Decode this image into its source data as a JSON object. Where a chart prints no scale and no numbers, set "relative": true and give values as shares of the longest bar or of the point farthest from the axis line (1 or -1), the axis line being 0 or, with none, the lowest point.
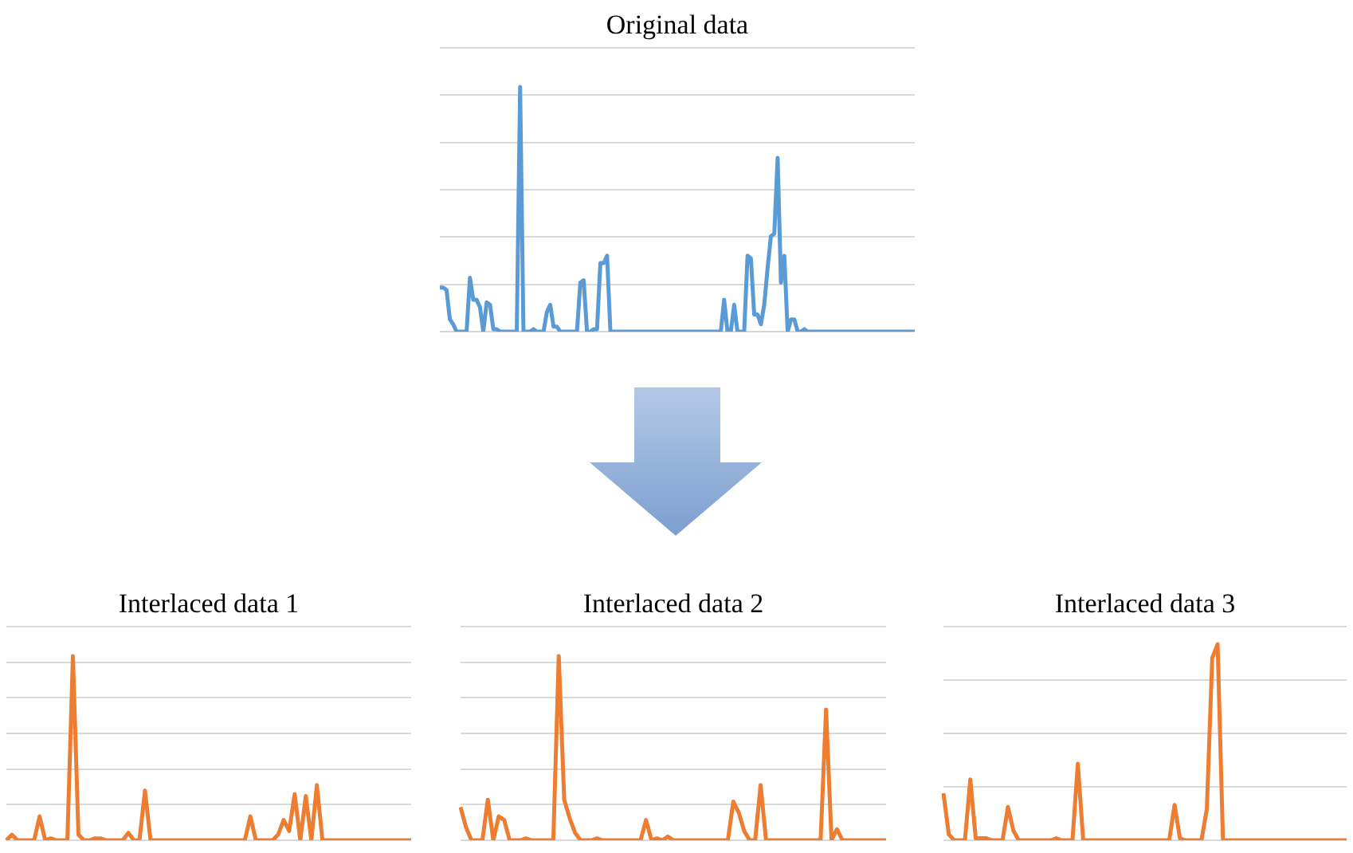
{
  "chart_data": [
    {
      "type": "line",
      "title": "Original data",
      "relative": true,
      "grid": "y",
      "marker": "none",
      "categories": [
        null,
        null,
        null,
        null,
        null,
        null,
        null,
        null,
        null,
        null,
        null,
        null,
        null,
        null,
        null,
        null,
        null,
        null,
        null,
        null,
        null,
        null,
        null,
        null,
        null,
        null,
        null,
        null,
        null,
        null,
        null,
        null,
        null,
        null,
        null,
        null,
        null,
        null,
        null,
        null,
        null,
        null,
        null,
        null,
        null,
        null,
        null,
        null,
        null,
        null,
        null,
        null,
        null,
        null,
        null,
        null,
        null,
        null,
        null,
        null,
        null,
        null,
        null,
        null,
        null,
        null,
        null,
        null,
        null,
        null,
        null,
        null,
        null,
        null,
        null,
        null,
        null,
        null,
        null,
        null,
        null,
        null,
        null,
        null,
        null,
        null,
        null,
        null,
        null,
        null,
        null,
        null,
        null,
        null,
        null,
        null,
        null,
        null,
        null,
        null,
        null,
        null,
        null,
        null,
        null,
        null,
        null,
        null,
        null,
        null,
        null,
        null,
        null,
        null,
        null,
        null,
        null,
        null,
        null,
        null,
        null,
        null,
        null,
        null,
        null,
        null,
        null,
        null,
        null,
        null,
        null,
        null,
        null,
        null,
        null,
        null,
        null,
        null,
        null,
        null,
        null,
        null,
        null
      ],
      "series": [
        {
          "color": "#5b9bd5",
          "values": [
            0.18,
            0.18,
            0.17,
            0.05,
            0.03,
            0,
            0,
            0,
            0,
            0.22,
            0.13,
            0.13,
            0.1,
            0,
            0.12,
            0.11,
            0.01,
            0.01,
            0,
            0,
            0,
            0,
            0,
            0,
            1,
            0,
            0,
            0,
            0.01,
            0,
            0,
            0,
            0.08,
            0.11,
            0.02,
            0.02,
            0,
            0,
            0,
            0,
            0,
            0,
            0.2,
            0.21,
            0,
            0,
            0.01,
            0.01,
            0.28,
            0.28,
            0.31,
            0,
            0,
            0,
            0,
            0,
            0,
            0,
            0,
            0,
            0,
            0,
            0,
            0,
            0,
            0,
            0,
            0,
            0,
            0,
            0,
            0,
            0,
            0,
            0,
            0,
            0,
            0,
            0,
            0,
            0,
            0,
            0,
            0,
            0,
            0.13,
            0,
            0,
            0.11,
            0,
            0,
            0,
            0.31,
            0.3,
            0.07,
            0.07,
            0.03,
            0.11,
            0.26,
            0.39,
            0.4,
            0.71,
            0.2,
            0.31,
            0,
            0.05,
            0.05,
            0,
            0,
            0.01,
            0,
            0,
            0,
            0,
            0,
            0,
            0,
            0,
            0,
            0,
            0,
            0,
            0,
            0,
            0,
            0,
            0,
            0,
            0,
            0,
            0,
            0,
            0,
            0,
            0,
            0,
            0,
            0,
            0,
            0,
            0,
            0,
            0
          ]
        }
      ]
    },
    {
      "type": "line",
      "title": "Interlaced data 1",
      "relative": true,
      "grid": "y",
      "marker": "none",
      "categories": [
        null,
        null,
        null,
        null,
        null,
        null,
        null,
        null,
        null,
        null,
        null,
        null,
        null,
        null,
        null,
        null,
        null,
        null,
        null,
        null,
        null,
        null,
        null,
        null,
        null,
        null,
        null,
        null,
        null,
        null,
        null,
        null,
        null,
        null,
        null,
        null,
        null,
        null,
        null,
        null,
        null,
        null,
        null,
        null,
        null,
        null,
        null,
        null,
        null,
        null,
        null,
        null,
        null,
        null,
        null,
        null,
        null,
        null,
        null,
        null,
        null,
        null,
        null,
        null,
        null,
        null,
        null,
        null,
        null,
        null,
        null,
        null,
        null,
        null
      ],
      "series": [
        {
          "color": "#ed7d31",
          "values": [
            0,
            0.03,
            0,
            0,
            0,
            0,
            0.13,
            0,
            0.01,
            0,
            0,
            0,
            1,
            0.03,
            0,
            0,
            0.01,
            0.01,
            0,
            0,
            0,
            0,
            0.04,
            0,
            0,
            0.27,
            0,
            0,
            0,
            0,
            0,
            0,
            0,
            0,
            0,
            0,
            0,
            0,
            0,
            0,
            0,
            0,
            0,
            0,
            0.13,
            0,
            0,
            0,
            0,
            0.03,
            0.11,
            0.05,
            0.25,
            0,
            0.24,
            0,
            0.3,
            0,
            0,
            0,
            0,
            0,
            0,
            0,
            0,
            0,
            0,
            0,
            0,
            0,
            0,
            0,
            0,
            0
          ]
        }
      ]
    },
    {
      "type": "line",
      "title": "Interlaced data 2",
      "relative": true,
      "grid": "y",
      "marker": "none",
      "categories": [
        null,
        null,
        null,
        null,
        null,
        null,
        null,
        null,
        null,
        null,
        null,
        null,
        null,
        null,
        null,
        null,
        null,
        null,
        null,
        null,
        null,
        null,
        null,
        null,
        null,
        null,
        null,
        null,
        null,
        null,
        null,
        null,
        null,
        null,
        null,
        null,
        null,
        null,
        null,
        null,
        null,
        null,
        null,
        null,
        null,
        null,
        null,
        null,
        null,
        null,
        null,
        null,
        null,
        null,
        null,
        null,
        null,
        null,
        null,
        null,
        null,
        null,
        null,
        null,
        null,
        null,
        null,
        null,
        null,
        null,
        null,
        null,
        null,
        null,
        null,
        null,
        null,
        null,
        null
      ],
      "series": [
        {
          "color": "#ed7d31",
          "values": [
            0.18,
            0.07,
            0,
            0,
            0,
            0.22,
            0,
            0.13,
            0.11,
            0,
            0,
            0,
            0.01,
            0,
            0,
            0,
            0,
            0,
            1,
            0.22,
            0.12,
            0.04,
            0,
            0,
            0,
            0.01,
            0,
            0,
            0,
            0,
            0,
            0,
            0,
            0,
            0.11,
            0,
            0.01,
            0,
            0.02,
            0,
            0,
            0,
            0,
            0,
            0,
            0,
            0,
            0,
            0,
            0,
            0.21,
            0.15,
            0.05,
            0,
            0,
            0.3,
            0,
            0,
            0,
            0,
            0,
            0,
            0,
            0,
            0,
            0,
            0,
            0.71,
            0,
            0.06,
            0,
            0,
            0,
            0,
            0,
            0,
            0,
            0,
            0
          ]
        }
      ]
    },
    {
      "type": "line",
      "title": "Interlaced data 3",
      "relative": true,
      "grid": "y",
      "marker": "none",
      "categories": [
        null,
        null,
        null,
        null,
        null,
        null,
        null,
        null,
        null,
        null,
        null,
        null,
        null,
        null,
        null,
        null,
        null,
        null,
        null,
        null,
        null,
        null,
        null,
        null,
        null,
        null,
        null,
        null,
        null,
        null,
        null,
        null,
        null,
        null,
        null,
        null,
        null,
        null,
        null,
        null,
        null,
        null,
        null,
        null,
        null,
        null,
        null,
        null,
        null,
        null,
        null,
        null,
        null,
        null,
        null,
        null,
        null,
        null,
        null,
        null,
        null,
        null,
        null,
        null,
        null,
        null,
        null,
        null,
        null,
        null,
        null,
        null,
        null,
        null,
        null,
        null
      ],
      "series": [
        {
          "color": "#ed7d31",
          "values": [
            0.24,
            0.03,
            0,
            0,
            0,
            0.31,
            0.01,
            0.01,
            0.01,
            0,
            0,
            0,
            0.17,
            0.05,
            0,
            0,
            0,
            0,
            0,
            0,
            0,
            0.01,
            0,
            0,
            0,
            0.39,
            0,
            0,
            0,
            0,
            0,
            0,
            0,
            0,
            0,
            0,
            0,
            0,
            0,
            0,
            0,
            0,
            0,
            0.18,
            0.01,
            0,
            0,
            0,
            0,
            0.16,
            0.93,
            1,
            0,
            0,
            0,
            0,
            0,
            0,
            0,
            0,
            0,
            0,
            0,
            0,
            0,
            0,
            0,
            0,
            0,
            0,
            0,
            0,
            0,
            0,
            0,
            0
          ]
        }
      ]
    }
  ]
}
